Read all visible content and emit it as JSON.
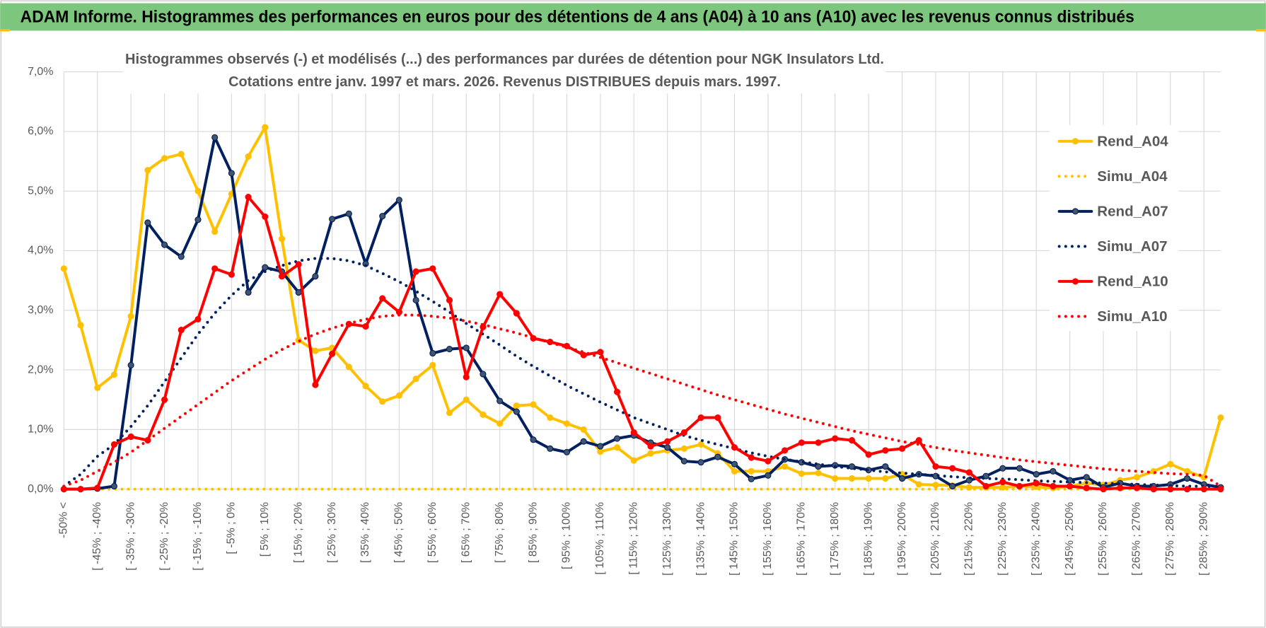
{
  "header": "ADAM Informe. Histogrammes des performances en euros pour des détentions de 4 ans (A04) à 10 ans (A10) avec les revenus connus distribués",
  "chart_data": {
    "type": "line",
    "title": [
      "Histogrammes observés (-) et modélisés (...) des performances par durées de détention pour NGK Insulators Ltd.",
      "Cotations entre janv. 1997 et mars. 2026. Revenus DISTRIBUES depuis mars. 1997."
    ],
    "categories": [
      "-50% <",
      null,
      "[ -45% ; -40%",
      null,
      "[ -35% ; -30%",
      null,
      "[ -25% ; -20%",
      null,
      "[ -15% ; -10%",
      null,
      "[ -5% ; 0%",
      null,
      "[ 5% ; 10%",
      null,
      "[ 15% ; 20%",
      null,
      "[ 25% ; 30%",
      null,
      "[ 35% ; 40%",
      null,
      "[ 45% ; 50%",
      null,
      "[ 55% ; 60%",
      null,
      "[ 65% ; 70%",
      null,
      "[ 75% ; 80%",
      null,
      "[ 85% ; 90%",
      null,
      "[ 95% ; 100%",
      null,
      "[ 105% ; 110%",
      null,
      "[ 115% ; 120%",
      null,
      "[ 125% ; 130%",
      null,
      "[ 135% ; 140%",
      null,
      "[ 145% ; 150%",
      null,
      "[ 155% ; 160%",
      null,
      "[ 165% ; 170%",
      null,
      "[ 175% ; 180%",
      null,
      "[ 185% ; 190%",
      null,
      "[ 195% ; 200%",
      null,
      "[ 205% ; 210%",
      null,
      "[ 215% ; 220%",
      null,
      "[ 225% ; 230%",
      null,
      "[ 235% ; 240%",
      null,
      "[ 245% ; 250%",
      null,
      "[ 255% ; 260%",
      null,
      "[ 265% ; 270%",
      null,
      "[ 275% ; 280%",
      null,
      "[ 285% ; 290%",
      null
    ],
    "series": [
      {
        "name": "Rend_A04",
        "color": "#FFC000",
        "style": "solid",
        "markers": true,
        "values": [
          3.7,
          2.75,
          1.7,
          1.92,
          2.9,
          5.35,
          5.55,
          5.62,
          5.0,
          4.32,
          4.95,
          5.58,
          6.07,
          4.2,
          2.5,
          2.32,
          2.37,
          2.05,
          1.73,
          1.47,
          1.57,
          1.85,
          2.08,
          1.28,
          1.5,
          1.25,
          1.1,
          1.4,
          1.42,
          1.2,
          1.1,
          1.0,
          0.63,
          0.7,
          0.48,
          0.6,
          0.65,
          0.68,
          0.75,
          0.6,
          0.3,
          0.3,
          0.3,
          0.38,
          0.26,
          0.27,
          0.18,
          0.18,
          0.18,
          0.18,
          0.25,
          0.08,
          0.07,
          0.06,
          0.03,
          0.03,
          0.03,
          0.05,
          0.04,
          0.02,
          0.05,
          0.1,
          0.07,
          0.15,
          0.2,
          0.3,
          0.42,
          0.3,
          0.2,
          1.2
        ]
      },
      {
        "name": "Simu_A04",
        "color": "#FFC000",
        "style": "dotted",
        "markers": false,
        "values": [
          0,
          0,
          0,
          0,
          0,
          0,
          0,
          0,
          0,
          0,
          0,
          0,
          0,
          0,
          0,
          0,
          0,
          0,
          0,
          0,
          0,
          0,
          0,
          0,
          0,
          0,
          0,
          0,
          0,
          0,
          0,
          0,
          0,
          0,
          0,
          0,
          0,
          0,
          0,
          0,
          0,
          0,
          0,
          0,
          0,
          0,
          0,
          0,
          0,
          0,
          0,
          0,
          0,
          0,
          0,
          0,
          0,
          0,
          0,
          0,
          0,
          0,
          0,
          0,
          0,
          0,
          0,
          0,
          0,
          0
        ]
      },
      {
        "name": "Rend_A07",
        "color": "#002060",
        "style": "solid",
        "markers": true,
        "values": [
          0,
          0,
          0.01,
          0.05,
          2.08,
          4.47,
          4.1,
          3.9,
          4.52,
          5.9,
          5.3,
          3.3,
          3.72,
          3.65,
          3.3,
          3.57,
          4.53,
          4.62,
          3.78,
          4.58,
          4.85,
          3.17,
          2.28,
          2.35,
          2.37,
          1.93,
          1.48,
          1.3,
          0.83,
          0.68,
          0.62,
          0.8,
          0.72,
          0.85,
          0.9,
          0.78,
          0.7,
          0.47,
          0.45,
          0.54,
          0.42,
          0.17,
          0.23,
          0.5,
          0.45,
          0.38,
          0.4,
          0.38,
          0.32,
          0.38,
          0.18,
          0.25,
          0.22,
          0.05,
          0.15,
          0.22,
          0.35,
          0.35,
          0.25,
          0.3,
          0.15,
          0.2,
          0.03,
          0.1,
          0.05,
          0.05,
          0.08,
          0.18,
          0.08,
          0.03
        ]
      },
      {
        "name": "Simu_A07",
        "color": "#002060",
        "style": "dotted",
        "markers": false,
        "values": [
          0.05,
          0.25,
          0.55,
          0.75,
          1.05,
          1.4,
          1.8,
          2.2,
          2.6,
          2.95,
          3.25,
          3.5,
          3.65,
          3.75,
          3.83,
          3.87,
          3.87,
          3.83,
          3.75,
          3.62,
          3.48,
          3.32,
          3.15,
          2.97,
          2.78,
          2.6,
          2.42,
          2.23,
          2.06,
          1.9,
          1.74,
          1.6,
          1.46,
          1.33,
          1.2,
          1.1,
          1.0,
          0.9,
          0.82,
          0.75,
          0.68,
          0.61,
          0.55,
          0.5,
          0.46,
          0.42,
          0.38,
          0.35,
          0.32,
          0.29,
          0.27,
          0.25,
          0.23,
          0.21,
          0.19,
          0.18,
          0.17,
          0.16,
          0.14,
          0.13,
          0.12,
          0.11,
          0.1,
          0.09,
          0.08,
          0.07,
          0.06,
          0.05,
          0.05,
          0.04
        ]
      },
      {
        "name": "Rend_A10",
        "color": "#FF0000",
        "style": "solid",
        "markers": true,
        "values": [
          0,
          0,
          0.02,
          0.75,
          0.88,
          0.82,
          1.5,
          2.67,
          2.85,
          3.7,
          3.6,
          4.9,
          4.57,
          3.57,
          3.77,
          1.75,
          2.27,
          2.77,
          2.73,
          3.2,
          2.97,
          3.65,
          3.7,
          3.17,
          1.88,
          2.72,
          3.27,
          2.95,
          2.53,
          2.47,
          2.4,
          2.25,
          2.3,
          1.63,
          0.95,
          0.72,
          0.8,
          0.95,
          1.2,
          1.2,
          0.7,
          0.53,
          0.47,
          0.65,
          0.78,
          0.78,
          0.85,
          0.82,
          0.58,
          0.65,
          0.68,
          0.82,
          0.38,
          0.35,
          0.28,
          0.05,
          0.12,
          0.05,
          0.1,
          0.05,
          0.05,
          0.02,
          0,
          0.02,
          0.02,
          0,
          0,
          0,
          0,
          0
        ]
      },
      {
        "name": "Simu_A10",
        "color": "#FF0000",
        "style": "dotted",
        "markers": false,
        "values": [
          0.05,
          0.15,
          0.3,
          0.45,
          0.62,
          0.82,
          1.02,
          1.22,
          1.42,
          1.62,
          1.82,
          2.0,
          2.18,
          2.34,
          2.48,
          2.6,
          2.7,
          2.78,
          2.85,
          2.9,
          2.92,
          2.92,
          2.9,
          2.87,
          2.82,
          2.76,
          2.69,
          2.62,
          2.54,
          2.46,
          2.38,
          2.3,
          2.21,
          2.12,
          2.03,
          1.94,
          1.85,
          1.76,
          1.67,
          1.58,
          1.5,
          1.42,
          1.34,
          1.26,
          1.19,
          1.12,
          1.05,
          0.98,
          0.92,
          0.86,
          0.8,
          0.75,
          0.7,
          0.65,
          0.61,
          0.57,
          0.53,
          0.49,
          0.46,
          0.43,
          0.4,
          0.37,
          0.34,
          0.32,
          0.3,
          0.28,
          0.26,
          0.25,
          0.23,
          0.05
        ]
      }
    ],
    "ylim": [
      0,
      7
    ],
    "yticks": [
      {
        "value": 0,
        "label": "0,0%"
      },
      {
        "value": 1,
        "label": "1,0%"
      },
      {
        "value": 2,
        "label": "2,0%"
      },
      {
        "value": 3,
        "label": "3,0%"
      },
      {
        "value": 4,
        "label": "4,0%"
      },
      {
        "value": 5,
        "label": "5,0%"
      },
      {
        "value": 6,
        "label": "6,0%"
      },
      {
        "value": 7,
        "label": "7,0%"
      }
    ],
    "grid": true,
    "legend": "right"
  }
}
